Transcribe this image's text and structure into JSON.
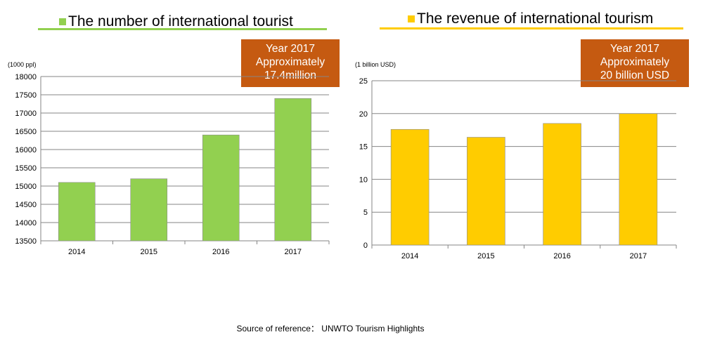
{
  "charts": [
    {
      "title": "The number  of international tourist",
      "legend_color": "#92d050",
      "underline_color": "#92d050",
      "unit": "(1000 ppl)",
      "note": {
        "line1": "Year 2017",
        "line2": "Approximately",
        "line3": "17.4million"
      }
    },
    {
      "title": "The revenue of international tourism",
      "legend_color": "#ffcc00",
      "underline_color": "#ffcc00",
      "unit": "(1 billion USD)",
      "note": {
        "line1": "Year 2017",
        "line2": "Approximately",
        "line3": "20 billion USD"
      }
    }
  ],
  "chart_data": [
    {
      "type": "bar",
      "title": "The number  of international tourist",
      "ylabel": "(1000 ppl)",
      "categories": [
        "2014",
        "2015",
        "2016",
        "2017"
      ],
      "values": [
        15100,
        15200,
        16400,
        17400
      ],
      "ylim": [
        13500,
        18000
      ],
      "yticks": [
        13500,
        14000,
        14500,
        15000,
        15500,
        16000,
        16500,
        17000,
        17500,
        18000
      ],
      "color": "#92d050",
      "grid": true
    },
    {
      "type": "bar",
      "title": "The revenue of international tourism",
      "ylabel": "(1 billion USD)",
      "categories": [
        "2014",
        "2015",
        "2016",
        "2017"
      ],
      "values": [
        17.6,
        16.4,
        18.5,
        20
      ],
      "ylim": [
        0,
        25
      ],
      "yticks": [
        0,
        5,
        10,
        15,
        20,
        25
      ],
      "color": "#ffcc00",
      "grid": true
    }
  ],
  "source": "Source of reference： UNWTO Tourism Highlights"
}
